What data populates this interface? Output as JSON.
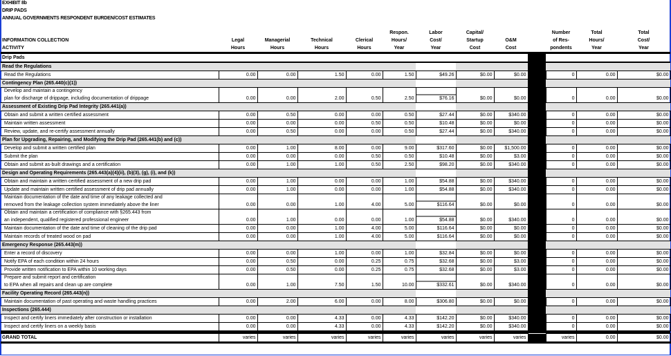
{
  "titles": [
    "EXHIBIT 8b",
    "DRIP PADS",
    "ANNUAL GOVERNMENTS RESPONDENT BURDEN/COST ESTIMATES"
  ],
  "headers": {
    "activity": [
      "INFORMATION COLLECTION",
      "ACTIVITY"
    ],
    "columns": [
      [
        "Legal",
        "Hours"
      ],
      [
        "Managerial",
        "Hours"
      ],
      [
        "Technical",
        "Hours"
      ],
      [
        "Clerical",
        "Hours"
      ],
      [
        "Respon.",
        "Hours/",
        "Year"
      ],
      [
        "Labor",
        "Cost/",
        "Year"
      ],
      [
        "Capital/",
        "Startup",
        "Cost"
      ],
      [
        "O&M",
        "Cost"
      ],
      [
        "Number",
        "of Res-",
        "pondents"
      ],
      [
        "Total",
        "Hours/",
        "Year"
      ],
      [
        "Total",
        "Cost/",
        "Year"
      ]
    ]
  },
  "group_label": "Drip Pads",
  "rows": [
    {
      "type": "section",
      "label": [
        "Read the Regulations"
      ]
    },
    {
      "type": "item",
      "label": [
        "Read the Regulations"
      ],
      "values": [
        "0.00",
        "0.00",
        "1.50",
        "0.00",
        "1.50",
        "$49.26",
        "$0.00",
        "$0.00",
        "0",
        "0.00",
        "$0.00"
      ]
    },
    {
      "type": "section",
      "label": [
        "Contingency Plan (265.440(c)(1))"
      ]
    },
    {
      "type": "item",
      "label": [
        "Develop and maintain a contingency",
        "plan for discharge of drippage, including documentation of drippage"
      ],
      "values": [
        "0.00",
        "0.00",
        "2.00",
        "0.50",
        "2.50",
        "$76.16",
        "$0.00",
        "$0.00",
        "0",
        "0.00",
        "$0.00"
      ]
    },
    {
      "type": "section",
      "label": [
        "Assessment of Existing Drip Pad Integrity (265.441(a))"
      ]
    },
    {
      "type": "item",
      "label": [
        "Obtain and submit a written certified assessment"
      ],
      "values": [
        "0.00",
        "0.50",
        "0.00",
        "0.00",
        "0.50",
        "$27.44",
        "$0.00",
        "$340.00",
        "0",
        "0.00",
        "$0.00"
      ]
    },
    {
      "type": "item",
      "label": [
        "Maintain written assessment"
      ],
      "values": [
        "0.00",
        "0.00",
        "0.00",
        "0.50",
        "0.50",
        "$10.48",
        "$0.00",
        "$0.00",
        "0",
        "0.00",
        "$0.00"
      ]
    },
    {
      "type": "item",
      "label": [
        "Review, update, and re-certify assessment annually"
      ],
      "values": [
        "0.00",
        "0.50",
        "0.00",
        "0.00",
        "0.50",
        "$27.44",
        "$0.00",
        "$340.00",
        "0",
        "0.00",
        "$0.00"
      ]
    },
    {
      "type": "section",
      "label": [
        "Plan for Upgrading, Repairing, and Modifying the Drip Pad (265.441(b) and (c))"
      ]
    },
    {
      "type": "item",
      "label": [
        "Develop and submit a written certified plan"
      ],
      "values": [
        "0.00",
        "1.00",
        "8.00",
        "0.00",
        "9.00",
        "$317.60",
        "$0.00",
        "$1,500.00",
        "0",
        "0.00",
        "$0.00"
      ]
    },
    {
      "type": "item",
      "label": [
        "Submit the plan"
      ],
      "values": [
        "0.00",
        "0.00",
        "0.00",
        "0.50",
        "0.50",
        "$10.48",
        "$0.00",
        "$3.00",
        "0",
        "0.00",
        "$0.00"
      ]
    },
    {
      "type": "item",
      "label": [
        "Obtain and submit as-built drawings and a certification"
      ],
      "values": [
        "0.00",
        "1.00",
        "1.00",
        "0.50",
        "2.50",
        "$98.20",
        "$0.00",
        "$340.00",
        "0",
        "0.00",
        "$0.00"
      ]
    },
    {
      "type": "section",
      "label": [
        "Design and Operating Requirements (265.443(a)(4)(ii), (b)(3), (g), (i), and (k))"
      ]
    },
    {
      "type": "item",
      "label": [
        "Obtain and maintain a written certified assessment of a new drip pad"
      ],
      "values": [
        "0.00",
        "1.00",
        "0.00",
        "0.00",
        "1.00",
        "$54.88",
        "$0.00",
        "$340.00",
        "0",
        "0.00",
        "$0.00"
      ]
    },
    {
      "type": "item",
      "label": [
        "Update and maintain written certified assessment of drip pad annually"
      ],
      "values": [
        "0.00",
        "1.00",
        "0.00",
        "0.00",
        "1.00",
        "$54.88",
        "$0.00",
        "$340.00",
        "0",
        "0.00",
        "$0.00"
      ]
    },
    {
      "type": "item",
      "label": [
        "Maintain documentation of the date and time of any leakage collected and",
        "removed from the leakage collection system immediately above the liner"
      ],
      "values": [
        "0.00",
        "0.00",
        "1.00",
        "4.00",
        "5.00",
        "$116.64",
        "$0.00",
        "$0.00",
        "0",
        "0.00",
        "$0.00"
      ]
    },
    {
      "type": "item",
      "label": [
        "Obtain and maintain a certification of compliance with §265.443 from",
        "an independent, qualified registered professional engineer"
      ],
      "values": [
        "0.00",
        "1.00",
        "0.00",
        "0.00",
        "1.00",
        "$54.88",
        "$0.00",
        "$340.00",
        "0",
        "0.00",
        "$0.00"
      ]
    },
    {
      "type": "item",
      "label": [
        "Maintain documentation of the date and time of cleaning of the drip pad"
      ],
      "values": [
        "0.00",
        "0.00",
        "1.00",
        "4.00",
        "5.00",
        "$116.64",
        "$0.00",
        "$0.00",
        "0",
        "0.00",
        "$0.00"
      ]
    },
    {
      "type": "item",
      "label": [
        "Maintain records of treated wood on pad"
      ],
      "values": [
        "0.00",
        "0.00",
        "1.00",
        "4.00",
        "5.00",
        "$116.64",
        "$0.00",
        "$0.00",
        "0",
        "0.00",
        "$0.00"
      ]
    },
    {
      "type": "section",
      "label": [
        "Emergency Response (265.443(m))"
      ]
    },
    {
      "type": "item",
      "label": [
        "Enter a record of discovery"
      ],
      "values": [
        "0.00",
        "0.00",
        "1.00",
        "0.00",
        "1.00",
        "$32.84",
        "$0.00",
        "$0.00",
        "0",
        "0.00",
        "$0.00"
      ]
    },
    {
      "type": "item",
      "label": [
        "Notify EPA of each condition within 24 hours"
      ],
      "values": [
        "0.00",
        "0.50",
        "0.00",
        "0.25",
        "0.75",
        "$32.68",
        "$0.00",
        "$3.00",
        "0",
        "0.00",
        "$0.00"
      ]
    },
    {
      "type": "item",
      "label": [
        "Provide written notification to EPA within 10 working days"
      ],
      "values": [
        "0.00",
        "0.50",
        "0.00",
        "0.25",
        "0.75",
        "$32.68",
        "$0.00",
        "$3.00",
        "0",
        "0.00",
        "$0.00"
      ]
    },
    {
      "type": "item",
      "label": [
        "Prepare and submit report and certification",
        "to EPA when all repairs and clean up are complete"
      ],
      "values": [
        "0.00",
        "1.00",
        "7.50",
        "1.50",
        "10.00",
        "$332.61",
        "$0.00",
        "$340.00",
        "0",
        "0.00",
        "$0.00"
      ]
    },
    {
      "type": "section",
      "label": [
        "Facility Operating Record (265.443(n))"
      ]
    },
    {
      "type": "item",
      "label": [
        "Maintain documentation of past operating and waste handling practices"
      ],
      "values": [
        "0.00",
        "2.00",
        "6.00",
        "0.00",
        "8.00",
        "$306.80",
        "$0.00",
        "$0.00",
        "0",
        "0.00",
        "$0.00"
      ]
    },
    {
      "type": "section",
      "label": [
        "Inspections (265.444)"
      ]
    },
    {
      "type": "item",
      "label": [
        "Inspect and certify liners immediately after construction or installation"
      ],
      "values": [
        "0.00",
        "0.00",
        "4.33",
        "0.00",
        "4.33",
        "$142.20",
        "$0.00",
        "$340.00",
        "0",
        "0.00",
        "$0.00"
      ]
    },
    {
      "type": "item",
      "label": [
        "Inspect and certify liners on a weekly basis"
      ],
      "values": [
        "0.00",
        "0.00",
        "4.33",
        "0.00",
        "4.33",
        "$142.20",
        "$0.00",
        "$340.00",
        "0",
        "0.00",
        "$0.00"
      ]
    }
  ],
  "grand_total": {
    "label": "GRAND TOTAL",
    "values": [
      "varies",
      "varies",
      "varies",
      "varies",
      "varies",
      "varies",
      "varies",
      "varies",
      "varies",
      "0.00",
      "$0.00"
    ]
  }
}
